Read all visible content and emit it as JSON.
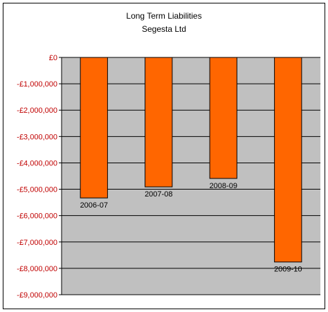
{
  "chart_data": {
    "type": "bar",
    "title": "Long Term Liabilities",
    "subtitle": "Segesta Ltd",
    "xlabel": "",
    "ylabel": "",
    "categories": [
      "2006-07",
      "2007-08",
      "2008-09",
      "2009-10"
    ],
    "values": [
      -5330000,
      -4910000,
      -4590000,
      -7760000
    ],
    "ylim": [
      -9000000,
      0
    ],
    "yticks": [
      0,
      -1000000,
      -2000000,
      -3000000,
      -4000000,
      -5000000,
      -6000000,
      -7000000,
      -8000000,
      -9000000
    ],
    "ytick_labels": [
      "£0",
      "-£1,000,000",
      "-£2,000,000",
      "-£3,000,000",
      "-£4,000,000",
      "-£5,000,000",
      "-£6,000,000",
      "-£7,000,000",
      "-£8,000,000",
      "-£9,000,000"
    ],
    "grid": true,
    "legend": "none",
    "colors": {
      "bar": "#ff6600",
      "bar_border": "#000000",
      "plot_background": "#c0c0c0",
      "gridline": "#000000",
      "tick_label": "#c00000"
    }
  }
}
